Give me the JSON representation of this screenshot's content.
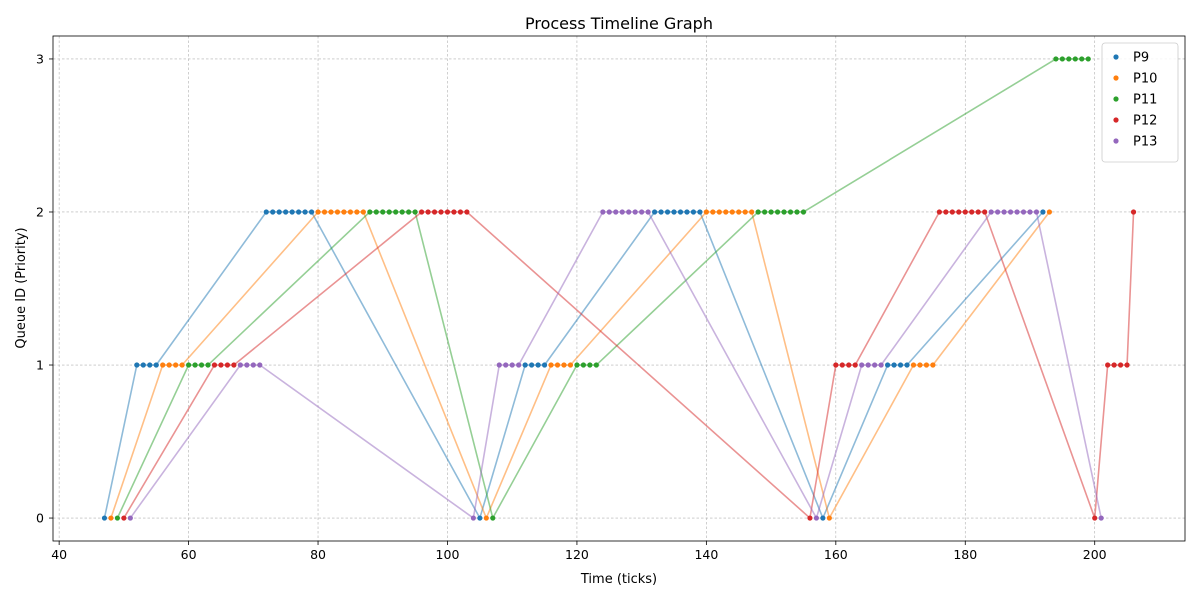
{
  "chart_data": {
    "type": "scatter",
    "title": "Process Timeline Graph",
    "xlabel": "Time (ticks)",
    "ylabel": "Queue ID (Priority)",
    "xlim": [
      39.05,
      213.95
    ],
    "ylim": [
      -0.15,
      3.15
    ],
    "xticks": [
      40,
      60,
      80,
      100,
      120,
      140,
      160,
      180,
      200
    ],
    "yticks": [
      0,
      1,
      2,
      3
    ],
    "grid": true,
    "legend_position": "top-right",
    "series": [
      {
        "name": "P9",
        "color": "#1f77b4",
        "runs": [
          {
            "x_start": 47,
            "x_end": 47,
            "queue": 0
          },
          {
            "x_start": 52,
            "x_end": 55,
            "queue": 1
          },
          {
            "x_start": 72,
            "x_end": 79,
            "queue": 2
          },
          {
            "x_start": 105,
            "x_end": 105,
            "queue": 0
          },
          {
            "x_start": 112,
            "x_end": 115,
            "queue": 1
          },
          {
            "x_start": 132,
            "x_end": 139,
            "queue": 2
          },
          {
            "x_start": 158,
            "x_end": 158,
            "queue": 0
          },
          {
            "x_start": 168,
            "x_end": 171,
            "queue": 1
          },
          {
            "x_start": 192,
            "x_end": 192,
            "queue": 2
          }
        ]
      },
      {
        "name": "P10",
        "color": "#ff7f0e",
        "runs": [
          {
            "x_start": 48,
            "x_end": 48,
            "queue": 0
          },
          {
            "x_start": 56,
            "x_end": 59,
            "queue": 1
          },
          {
            "x_start": 80,
            "x_end": 87,
            "queue": 2
          },
          {
            "x_start": 106,
            "x_end": 106,
            "queue": 0
          },
          {
            "x_start": 116,
            "x_end": 119,
            "queue": 1
          },
          {
            "x_start": 140,
            "x_end": 147,
            "queue": 2
          },
          {
            "x_start": 159,
            "x_end": 159,
            "queue": 0
          },
          {
            "x_start": 172,
            "x_end": 175,
            "queue": 1
          },
          {
            "x_start": 193,
            "x_end": 193,
            "queue": 2
          }
        ]
      },
      {
        "name": "P11",
        "color": "#2ca02c",
        "runs": [
          {
            "x_start": 49,
            "x_end": 49,
            "queue": 0
          },
          {
            "x_start": 60,
            "x_end": 63,
            "queue": 1
          },
          {
            "x_start": 88,
            "x_end": 95,
            "queue": 2
          },
          {
            "x_start": 107,
            "x_end": 107,
            "queue": 0
          },
          {
            "x_start": 120,
            "x_end": 123,
            "queue": 1
          },
          {
            "x_start": 148,
            "x_end": 155,
            "queue": 2
          },
          {
            "x_start": 194,
            "x_end": 199,
            "queue": 3
          }
        ]
      },
      {
        "name": "P12",
        "color": "#d62728",
        "runs": [
          {
            "x_start": 50,
            "x_end": 50,
            "queue": 0
          },
          {
            "x_start": 64,
            "x_end": 67,
            "queue": 1
          },
          {
            "x_start": 96,
            "x_end": 103,
            "queue": 2
          },
          {
            "x_start": 156,
            "x_end": 156,
            "queue": 0
          },
          {
            "x_start": 160,
            "x_end": 163,
            "queue": 1
          },
          {
            "x_start": 176,
            "x_end": 183,
            "queue": 2
          },
          {
            "x_start": 200,
            "x_end": 200,
            "queue": 0
          },
          {
            "x_start": 202,
            "x_end": 205,
            "queue": 1
          },
          {
            "x_start": 206,
            "x_end": 206,
            "queue": 2
          }
        ]
      },
      {
        "name": "P13",
        "color": "#9467bd",
        "runs": [
          {
            "x_start": 51,
            "x_end": 51,
            "queue": 0
          },
          {
            "x_start": 68,
            "x_end": 71,
            "queue": 1
          },
          {
            "x_start": 104,
            "x_end": 104,
            "queue": 0
          },
          {
            "x_start": 108,
            "x_end": 111,
            "queue": 1
          },
          {
            "x_start": 124,
            "x_end": 131,
            "queue": 2
          },
          {
            "x_start": 157,
            "x_end": 157,
            "queue": 0
          },
          {
            "x_start": 164,
            "x_end": 167,
            "queue": 1
          },
          {
            "x_start": 184,
            "x_end": 191,
            "queue": 2
          },
          {
            "x_start": 201,
            "x_end": 201,
            "queue": 0
          }
        ]
      }
    ]
  }
}
